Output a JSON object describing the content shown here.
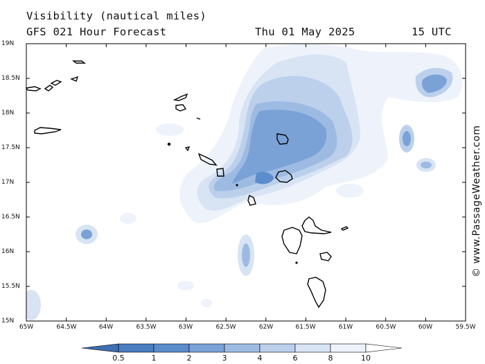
{
  "header": {
    "product": "Visibility (nautical miles)",
    "model_line": "GFS 021 Hour Forecast",
    "date": "Thu 01 May 2025",
    "time": "15 UTC"
  },
  "map": {
    "lat_labels": [
      "19N",
      "18.5N",
      "18N",
      "17.5N",
      "17N",
      "16.5N",
      "16N",
      "15.5N",
      "15N"
    ],
    "lon_labels": [
      "65W",
      "64.5W",
      "64W",
      "63.5W",
      "63W",
      "62.5W",
      "62W",
      "61.5W",
      "61W",
      "60.5W",
      "60W",
      "59.5W"
    ],
    "lat_range": [
      15,
      19
    ],
    "lon_range": [
      -65,
      -59.5
    ]
  },
  "colorbar": {
    "labels": [
      "0.5",
      "1",
      "2",
      "3",
      "4",
      "6",
      "8",
      "10"
    ],
    "colors": [
      "#4a7cc0",
      "#5b8ccc",
      "#7aa2d6",
      "#9dbbe2",
      "#bcd0ec",
      "#d8e4f4",
      "#eef3fb"
    ]
  },
  "credit": "© www.PassageWeather.com"
}
